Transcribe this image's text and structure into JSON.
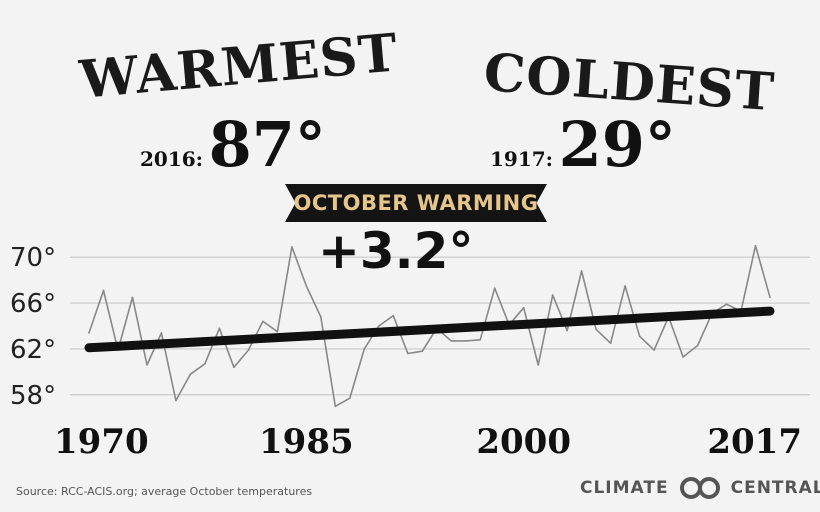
{
  "headlines": {
    "warmest": "WARMEST",
    "coldest": "COLDEST",
    "warm_year": "2016:",
    "warm_value": "87°",
    "cold_year": "1917:",
    "cold_value": "29°"
  },
  "banner": "OCTOBER WARMING",
  "change": "+3.2°",
  "footer": {
    "source": "Source: RCC-ACIS.org; average October temperatures",
    "logo_left": "CLIMATE",
    "logo_right": "CENTRAL",
    "logo_color": "#555555"
  },
  "chart_data": {
    "type": "line",
    "xlim": [
      1970,
      2017
    ],
    "ylim": [
      56.5,
      71.5
    ],
    "x_ticks": [
      1970,
      1985,
      2000,
      2017
    ],
    "x_tick_labels": [
      "1970",
      "1985",
      "2000",
      "2017"
    ],
    "y_ticks": [
      58,
      62,
      66,
      70
    ],
    "y_tick_labels": [
      "58°",
      "62°",
      "66°",
      "70°"
    ],
    "grid": true,
    "series": [
      {
        "x": [
          1970,
          1971,
          1972,
          1973,
          1974,
          1975,
          1976,
          1977,
          1978,
          1979,
          1980,
          1981,
          1982,
          1983,
          1984,
          1985,
          1986,
          1987,
          1988,
          1989,
          1990,
          1991,
          1992,
          1993,
          1994,
          1995,
          1996,
          1997,
          1998,
          1999,
          2000,
          2001,
          2002,
          2003,
          2004,
          2005,
          2006,
          2007,
          2008,
          2009,
          2010,
          2011,
          2012,
          2013,
          2014,
          2015,
          2016,
          2017
        ],
        "values": [
          63.4,
          67.1,
          61.9,
          66.5,
          60.6,
          63.4,
          57.5,
          59.8,
          60.7,
          63.8,
          60.4,
          61.9,
          64.4,
          63.5,
          70.9,
          67.5,
          64.8,
          57.0,
          57.7,
          62.0,
          64.0,
          64.9,
          61.6,
          61.8,
          63.8,
          62.7,
          62.7,
          62.8,
          67.3,
          64.1,
          65.6,
          60.6,
          66.7,
          63.6,
          68.8,
          63.7,
          62.5,
          67.5,
          63.1,
          61.9,
          64.8,
          61.3,
          62.3,
          65.1,
          65.9,
          65.3,
          71.0,
          66.5
        ],
        "color": "#888888"
      },
      {
        "x": [
          1970,
          2017
        ],
        "values": [
          62.1,
          65.3
        ],
        "color": "#111111"
      }
    ]
  }
}
